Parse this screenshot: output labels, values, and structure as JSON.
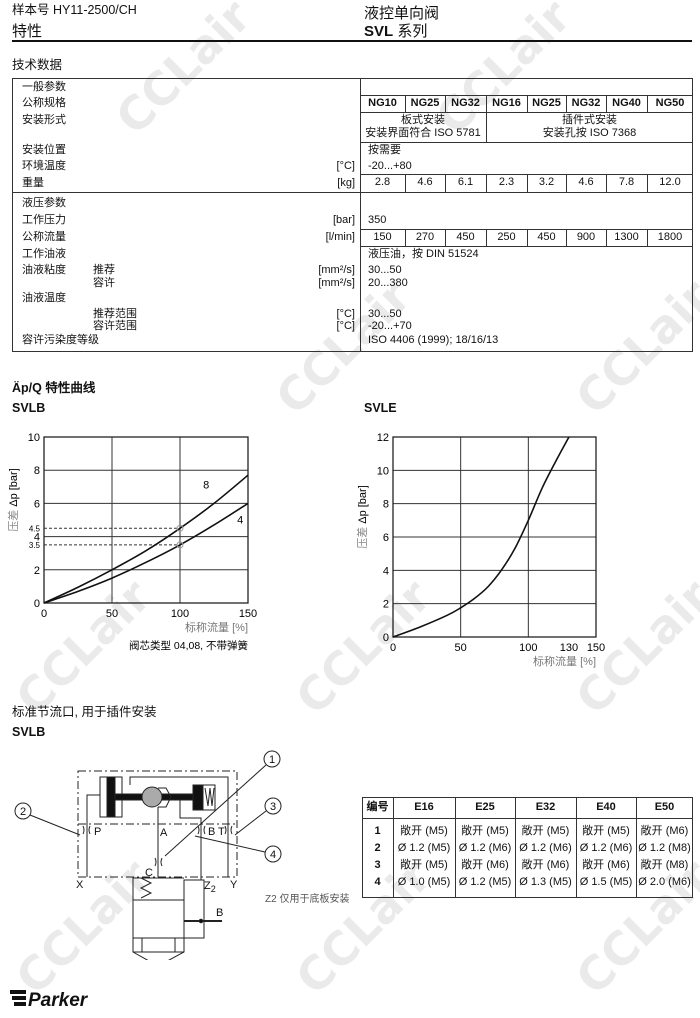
{
  "header": {
    "catalog": "样本号 HY11-2500/CH",
    "section": "特性",
    "product": "液控单向阀",
    "series_bold": "SVL",
    "series_suffix": "系列"
  },
  "tech_title": "技术数据",
  "spec": {
    "general_title": "一般参数",
    "size_label": "公称规格",
    "sizes": [
      "NG10",
      "NG25",
      "NG32",
      "NG16",
      "NG25",
      "NG32",
      "NG40",
      "NG50"
    ],
    "mounting_label": "安装形式",
    "mounting_plate": [
      "板式安装",
      "安装界面符合 ISO 5781"
    ],
    "mounting_cartridge": [
      "插件式安装",
      "安装孔按  ISO 7368"
    ],
    "position_label": "安装位置",
    "position_value": "按需要",
    "ambient_label": "环境温度",
    "ambient_unit": "[°C]",
    "ambient_value": "-20...+80",
    "weight_label": "重量",
    "weight_unit": "[kg]",
    "weights": [
      "2.8",
      "4.6",
      "6.1",
      "2.3",
      "3.2",
      "4.6",
      "7.8",
      "12.0"
    ],
    "hydraulic_title": "液压参数",
    "pressure_label": "工作压力",
    "pressure_unit": "[bar]",
    "pressure_value": "350",
    "flow_label": "公称流量",
    "flow_unit": "[l/min]",
    "flows": [
      "150",
      "270",
      "450",
      "250",
      "450",
      "900",
      "1300",
      "1800"
    ],
    "fluid_label": "工作油液",
    "fluid_value": "液压油，按 DIN 51524",
    "viscosity_label": "油液粘度",
    "visc_rec_label": "推荐",
    "visc_rec_unit": "[mm²/s]",
    "visc_rec_value": "30...50",
    "visc_perm_label": "容许",
    "visc_perm_unit": "[mm²/s]",
    "visc_perm_value": "20...380",
    "fluid_temp_label": "油液温度",
    "temp_rec_label": "推荐范围",
    "temp_rec_unit": "[°C]",
    "temp_rec_value": "30...50",
    "temp_perm_label": "容许范围",
    "temp_perm_unit": "[°C]",
    "temp_perm_value": "-20...+70",
    "contamination_label": "容许污染度等级",
    "contamination_value": "ISO 4406 (1999); 18/16/13"
  },
  "curves_title": "Äp/Q 特性曲线",
  "chart_data": [
    {
      "type": "line",
      "title": "SVLB",
      "ylabel_prefix": "压差",
      "ylabel": "Δp [bar]",
      "xlabel": "标称流量 [%]",
      "xlim": [
        0,
        150
      ],
      "ylim": [
        0,
        10
      ],
      "xticks": [
        0,
        50,
        100,
        150
      ],
      "yticks": [
        0,
        2,
        4,
        6,
        8,
        10
      ],
      "extra_yticks": [
        "4.5",
        "3.5"
      ],
      "grid": true,
      "note": "阀芯类型 04,08, 不带弹簧",
      "series": [
        {
          "name": "8",
          "x": [
            0,
            25,
            50,
            75,
            100,
            125,
            150
          ],
          "y": [
            0,
            0.95,
            2.0,
            3.15,
            4.5,
            6.0,
            7.7
          ]
        },
        {
          "name": "4",
          "x": [
            0,
            25,
            50,
            75,
            100,
            125,
            150
          ],
          "y": [
            0,
            0.7,
            1.5,
            2.45,
            3.5,
            4.7,
            6.0
          ]
        }
      ],
      "markers": [
        {
          "x": 100,
          "y": 4.5
        },
        {
          "x": 100,
          "y": 3.5
        }
      ]
    },
    {
      "type": "line",
      "title": "SVLE",
      "ylabel_prefix": "压差",
      "ylabel": "Δp [bar]",
      "xlabel": "标称流量 [%]",
      "xlim": [
        0,
        150
      ],
      "ylim": [
        0,
        12
      ],
      "xticks": [
        0,
        50,
        100,
        130,
        150
      ],
      "yticks": [
        0,
        2,
        4,
        6,
        8,
        10,
        12
      ],
      "grid": true,
      "series": [
        {
          "x": [
            0,
            20,
            40,
            50,
            60,
            70,
            80,
            90,
            100,
            110,
            120,
            130
          ],
          "y": [
            0,
            0.6,
            1.3,
            1.75,
            2.3,
            3.0,
            4.0,
            5.3,
            7.0,
            8.9,
            10.5,
            12.0
          ]
        }
      ]
    }
  ],
  "orifice_title": "标准节流口, 用于插件安装",
  "orifice_subtitle": "SVLB",
  "schematic": {
    "ports": {
      "P": "P",
      "A": "A",
      "B": "B",
      "T": "T",
      "X": "X",
      "Y": "Y",
      "C": "C",
      "Z": "Z",
      "Z_sub": "2",
      "A2": "A",
      "B2": "B"
    },
    "callouts": [
      "1",
      "2",
      "3",
      "4"
    ],
    "note": "Z2 仅用于底板安装"
  },
  "orifice_table": {
    "headers": [
      "编号",
      "E16",
      "E25",
      "E32",
      "E40",
      "E50"
    ],
    "rows": [
      [
        "1",
        "敞开 (M5)",
        "敞开 (M5)",
        "敞开 (M5)",
        "敞开 (M5)",
        "敞开 (M6)"
      ],
      [
        "2",
        "Ø 1.2 (M5)",
        "Ø 1.2 (M6)",
        "Ø 1.2 (M6)",
        "Ø 1.2 (M6)",
        "Ø 1.2 (M8)"
      ],
      [
        "3",
        "敞开 (M5)",
        "敞开 (M6)",
        "敞开 (M6)",
        "敞开 (M6)",
        "敞开 (M8)"
      ],
      [
        "4",
        "Ø 1.0 (M5)",
        "Ø 1.2 (M5)",
        "Ø 1.3 (M5)",
        "Ø 1.5 (M5)",
        "Ø 2.0 (M6)"
      ]
    ]
  },
  "logo": "Parker",
  "watermark": "CCLair"
}
